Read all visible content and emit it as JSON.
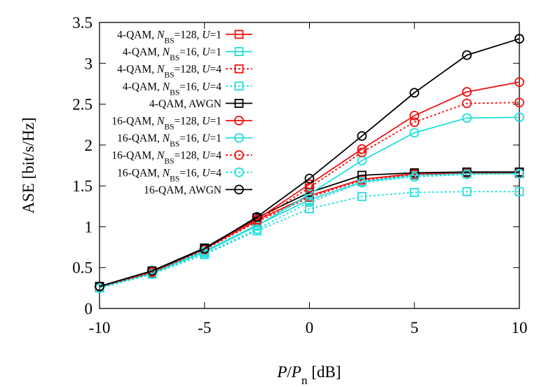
{
  "chart_data": {
    "type": "line",
    "x_label": "P/Pn [dB]",
    "y_label": "ASE [bit/s/Hz]",
    "x": [
      -10,
      -7.5,
      -5,
      -2.5,
      0,
      2.5,
      5,
      7.5,
      10
    ],
    "xlim": [
      -10,
      10
    ],
    "xticks": [
      -10,
      -5,
      0,
      5,
      10
    ],
    "ylim": [
      0,
      3.5
    ],
    "yticks": [
      0,
      0.5,
      1,
      1.5,
      2,
      2.5,
      3,
      3.5
    ],
    "legend": "upper left",
    "series": [
      {
        "name": "4-QAM, NBS=128, U=1",
        "color": "#ee1111",
        "dashed": false,
        "marker": "square",
        "values": [
          0.27,
          0.45,
          0.73,
          1.08,
          1.38,
          1.58,
          1.65,
          1.66,
          1.66
        ]
      },
      {
        "name": "4-QAM, NBS=16, U=1",
        "color": "#22dddd",
        "dashed": false,
        "marker": "square",
        "values": [
          0.26,
          0.44,
          0.7,
          1.02,
          1.33,
          1.55,
          1.63,
          1.65,
          1.65
        ]
      },
      {
        "name": "4-QAM, NBS=128, U=4",
        "color": "#ee1111",
        "dashed": true,
        "marker": "square",
        "values": [
          0.26,
          0.45,
          0.72,
          1.06,
          1.36,
          1.57,
          1.64,
          1.66,
          1.66
        ]
      },
      {
        "name": "4-QAM, NBS=16, U=4",
        "color": "#22dddd",
        "dashed": true,
        "marker": "square",
        "values": [
          0.25,
          0.42,
          0.66,
          0.95,
          1.22,
          1.37,
          1.42,
          1.43,
          1.43
        ]
      },
      {
        "name": "4-QAM, AWGN",
        "color": "#000000",
        "dashed": false,
        "marker": "square",
        "values": [
          0.27,
          0.46,
          0.74,
          1.11,
          1.42,
          1.63,
          1.66,
          1.67,
          1.67
        ]
      },
      {
        "name": "16-QAM, NBS=128, U=1",
        "color": "#ee1111",
        "dashed": false,
        "marker": "circle",
        "values": [
          0.27,
          0.45,
          0.73,
          1.09,
          1.52,
          1.95,
          2.36,
          2.65,
          2.77
        ]
      },
      {
        "name": "16-QAM, NBS=16, U=1",
        "color": "#22dddd",
        "dashed": false,
        "marker": "circle",
        "values": [
          0.26,
          0.43,
          0.69,
          1.01,
          1.4,
          1.81,
          2.15,
          2.33,
          2.34
        ]
      },
      {
        "name": "16-QAM, NBS=128, U=4",
        "color": "#ee1111",
        "dashed": true,
        "marker": "circle",
        "values": [
          0.26,
          0.44,
          0.72,
          1.07,
          1.48,
          1.91,
          2.28,
          2.51,
          2.52
        ]
      },
      {
        "name": "16-QAM, NBS=16, U=4",
        "color": "#22dddd",
        "dashed": true,
        "marker": "circle",
        "values": [
          0.25,
          0.42,
          0.67,
          0.97,
          1.3,
          1.54,
          1.61,
          1.64,
          1.65
        ]
      },
      {
        "name": "16-QAM, AWGN",
        "color": "#000000",
        "dashed": false,
        "marker": "circle",
        "values": [
          0.27,
          0.46,
          0.73,
          1.12,
          1.59,
          2.11,
          2.64,
          3.1,
          3.3
        ]
      }
    ]
  }
}
